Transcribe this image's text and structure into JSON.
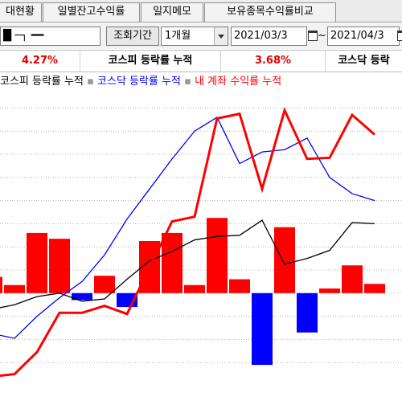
{
  "tabs": [
    {
      "label": "대현황"
    },
    {
      "label": "일별잔고수익률"
    },
    {
      "label": "일지메모"
    },
    {
      "label": "보유종목수익률비교"
    }
  ],
  "filter": {
    "account_value": "█ ─┐ ━━",
    "period_label": "조회기간",
    "period_value": "1개월",
    "start_date": "2021/03/3",
    "tilde": "~",
    "end_date": "2021/04/3"
  },
  "summary": {
    "v1": "4.27%",
    "l1": "코스피 등락률 누적",
    "v2": "3.68%",
    "l2": "코스닥 등락"
  },
  "legend": {
    "kospi": "코스피 등락률 누적",
    "kosdaq": "코스닥 등락률 누적",
    "mine": "내 계좌 수익률 누적",
    "marker": "▪"
  },
  "colors": {
    "kospi": "#000000",
    "kosdaq": "#0000ff",
    "mine": "#ff0000",
    "bar_pos": "#ff0000",
    "bar_neg": "#0000ff",
    "grid": "#b4b4b4"
  },
  "chart_data": {
    "type": "line",
    "x_index": [
      0,
      1,
      2,
      3,
      4,
      5,
      6,
      7,
      8,
      9,
      10,
      11,
      12,
      13,
      14,
      15,
      16,
      17
    ],
    "series": [
      {
        "name": "코스피 등락률 누적",
        "values": [
          -0.7,
          -0.5,
          -0.15,
          0.0,
          -0.35,
          -0.25,
          0.6,
          1.4,
          1.8,
          2.3,
          2.45,
          2.5,
          3.15,
          1.25,
          1.5,
          1.85,
          3.05,
          3.0
        ]
      },
      {
        "name": "코스닥 등락률 누적",
        "values": [
          -1.75,
          -1.95,
          -1.0,
          -0.2,
          0.5,
          1.65,
          3.2,
          4.5,
          5.8,
          7.0,
          7.6,
          5.6,
          6.1,
          6.2,
          6.7,
          5.0,
          4.3,
          4.0
        ]
      },
      {
        "name": "내 계좌 수익률 누적",
        "values": [
          -3.6,
          -3.5,
          -2.55,
          -0.85,
          -0.85,
          -0.55,
          -0.9,
          1.1,
          3.1,
          3.3,
          7.55,
          7.75,
          4.5,
          7.9,
          5.8,
          5.85,
          7.7,
          6.85
        ]
      }
    ],
    "bars": {
      "name": "일별 수익률",
      "values": [
        0.7,
        0.35,
        2.6,
        2.35,
        -0.3,
        0.75,
        -0.6,
        2.25,
        2.6,
        0.35,
        3.25,
        0.6,
        -3.1,
        2.85,
        -1.7,
        0.2,
        1.2,
        0.4
      ]
    }
  }
}
